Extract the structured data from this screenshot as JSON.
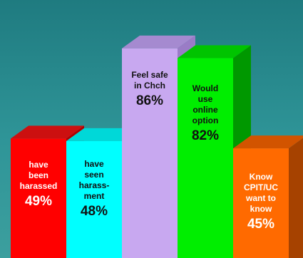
{
  "chart_data": {
    "type": "bar",
    "categories": [
      "have\nbeen\nharassed",
      "have\nseen\nharass-\nment",
      "Feel safe\nin Chch",
      "Would\nuse\nonline\noption",
      "Know\nCPIT/UC\nwant to\nknow"
    ],
    "value_labels": [
      "49%",
      "48%",
      "86%",
      "82%",
      "45%"
    ],
    "values": [
      49,
      48,
      86,
      82,
      45
    ],
    "ylim": [
      0,
      100
    ],
    "grid": false,
    "legend": "none",
    "colors": [
      {
        "front": "#ff0000",
        "side": "#b00000",
        "top": "#cc1010",
        "text": "#ffffff"
      },
      {
        "front": "#00ffff",
        "side": "#00b0b0",
        "top": "#00d8d8",
        "text": "#111111"
      },
      {
        "front": "#c8a8f0",
        "side": "#9a7cc6",
        "top": "#a58ad0",
        "text": "#111111"
      },
      {
        "front": "#00ee00",
        "side": "#009800",
        "top": "#00c400",
        "text": "#111111"
      },
      {
        "front": "#ff6a00",
        "side": "#a64200",
        "top": "#d25400",
        "text": "#ffffff"
      }
    ]
  }
}
